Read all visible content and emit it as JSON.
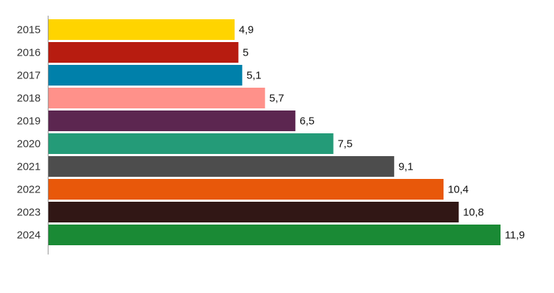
{
  "chart_data": {
    "type": "bar",
    "orientation": "horizontal",
    "categories": [
      "2015",
      "2016",
      "2017",
      "2018",
      "2019",
      "2020",
      "2021",
      "2022",
      "2023",
      "2024"
    ],
    "values": [
      4.9,
      5,
      5.1,
      5.7,
      6.5,
      7.5,
      9.1,
      10.4,
      10.8,
      11.9
    ],
    "value_labels": [
      "4,9",
      "5",
      "5,1",
      "5,7",
      "6,5",
      "7,5",
      "9,1",
      "10,4",
      "10,8",
      "11,9"
    ],
    "colors": [
      "#ffd400",
      "#b71c10",
      "#0080aa",
      "#ff918a",
      "#5c2650",
      "#249b78",
      "#4d4d4d",
      "#e8580a",
      "#311715",
      "#1a8a35"
    ]
  }
}
